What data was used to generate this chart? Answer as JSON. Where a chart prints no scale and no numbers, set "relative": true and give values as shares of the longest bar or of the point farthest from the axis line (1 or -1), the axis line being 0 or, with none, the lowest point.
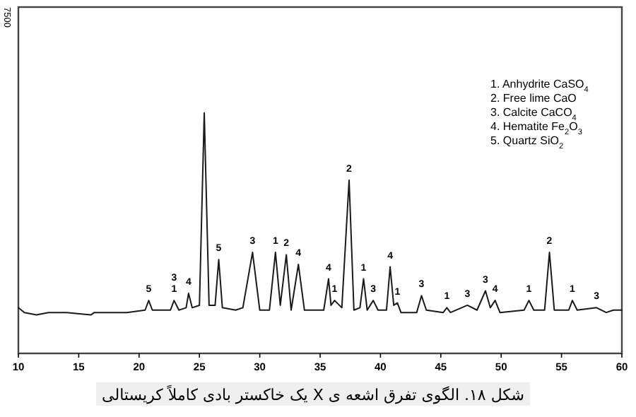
{
  "chart_data": {
    "type": "line",
    "relative": true,
    "color": "#1a1a1a",
    "xlim": [
      10,
      60
    ],
    "xticks": [
      10,
      15,
      20,
      25,
      30,
      35,
      40,
      45,
      50,
      55,
      60
    ],
    "x": [
      10,
      10.5,
      11.5,
      12.5,
      14,
      16,
      16.3,
      18,
      19,
      20.5,
      20.8,
      21.1,
      22.6,
      22.9,
      23.3,
      23.9,
      24.1,
      24.4,
      25.0,
      25.4,
      25.8,
      26.3,
      26.6,
      26.9,
      28,
      28.6,
      29.4,
      30.0,
      30.8,
      31.3,
      31.7,
      32.2,
      32.6,
      33.2,
      33.7,
      35.3,
      35.7,
      35.9,
      36.2,
      36.8,
      37.4,
      37.8,
      38.3,
      38.6,
      38.9,
      39.4,
      39.8,
      40.5,
      40.8,
      41.1,
      41.4,
      41.7,
      43.0,
      43.4,
      43.8,
      45.2,
      45.5,
      45.8,
      47.2,
      48.0,
      48.7,
      49.1,
      49.5,
      49.9,
      51.9,
      52.3,
      52.7,
      53.6,
      54.0,
      54.4,
      55.6,
      55.9,
      56.3,
      57.9,
      58.7,
      59.3,
      60
    ],
    "values": [
      0.19,
      0.17,
      0.16,
      0.17,
      0.17,
      0.16,
      0.17,
      0.17,
      0.17,
      0.18,
      0.22,
      0.18,
      0.18,
      0.22,
      0.18,
      0.19,
      0.25,
      0.19,
      0.2,
      1.0,
      0.2,
      0.2,
      0.39,
      0.19,
      0.18,
      0.19,
      0.42,
      0.18,
      0.18,
      0.42,
      0.2,
      0.41,
      0.18,
      0.37,
      0.18,
      0.18,
      0.31,
      0.2,
      0.22,
      0.19,
      0.72,
      0.18,
      0.19,
      0.31,
      0.18,
      0.22,
      0.18,
      0.18,
      0.36,
      0.2,
      0.21,
      0.17,
      0.17,
      0.24,
      0.18,
      0.17,
      0.19,
      0.17,
      0.2,
      0.18,
      0.26,
      0.19,
      0.22,
      0.17,
      0.18,
      0.22,
      0.18,
      0.18,
      0.42,
      0.18,
      0.18,
      0.22,
      0.18,
      0.19,
      0.17,
      0.18,
      0.18
    ],
    "annotations": [
      "7500",
      "1. Anhydrite CaSO$_{4}$",
      "2. Free lime CaO",
      "3. Calcite CaCO$_{4}$",
      "4. Hematite Fe$_{2}$O$_{3}$",
      "5. Quartz SiO$_{2}$",
      "شکل ۱۸. الگوی تفرق اشعه ی X یک خاکستر بادی کاملاً کریستالی",
      {
        "text": "5",
        "x": 20.8,
        "y": 0.22
      },
      {
        "text": "1",
        "x": 22.9,
        "y": 0.22
      },
      {
        "text": "3",
        "x": 22.9,
        "y": 0.22
      },
      {
        "text": "4",
        "x": 24.1,
        "y": 0.25
      },
      {
        "text": "5",
        "x": 26.6,
        "y": 0.39
      },
      {
        "text": "3",
        "x": 29.4,
        "y": 0.42
      },
      {
        "text": "1",
        "x": 31.3,
        "y": 0.42
      },
      {
        "text": "2",
        "x": 32.2,
        "y": 0.41
      },
      {
        "text": "4",
        "x": 33.2,
        "y": 0.37
      },
      {
        "text": "4",
        "x": 35.7,
        "y": 0.31
      },
      {
        "text": "1",
        "x": 36.2,
        "y": 0.22
      },
      {
        "text": "2",
        "x": 37.4,
        "y": 0.72
      },
      {
        "text": "1",
        "x": 38.6,
        "y": 0.31
      },
      {
        "text": "3",
        "x": 39.4,
        "y": 0.22
      },
      {
        "text": "4",
        "x": 40.8,
        "y": 0.36
      },
      {
        "text": "1",
        "x": 41.4,
        "y": 0.21
      },
      {
        "text": "3",
        "x": 43.4,
        "y": 0.24
      },
      {
        "text": "1",
        "x": 45.5,
        "y": 0.19
      },
      {
        "text": "3",
        "x": 47.2,
        "y": 0.2
      },
      {
        "text": "3",
        "x": 48.7,
        "y": 0.26
      },
      {
        "text": "4",
        "x": 49.5,
        "y": 0.22
      },
      {
        "text": "1",
        "x": 52.3,
        "y": 0.22
      },
      {
        "text": "2",
        "x": 54.0,
        "y": 0.42
      },
      {
        "text": "1",
        "x": 55.9,
        "y": 0.22
      },
      {
        "text": "3",
        "x": 57.9,
        "y": 0.19
      }
    ]
  }
}
